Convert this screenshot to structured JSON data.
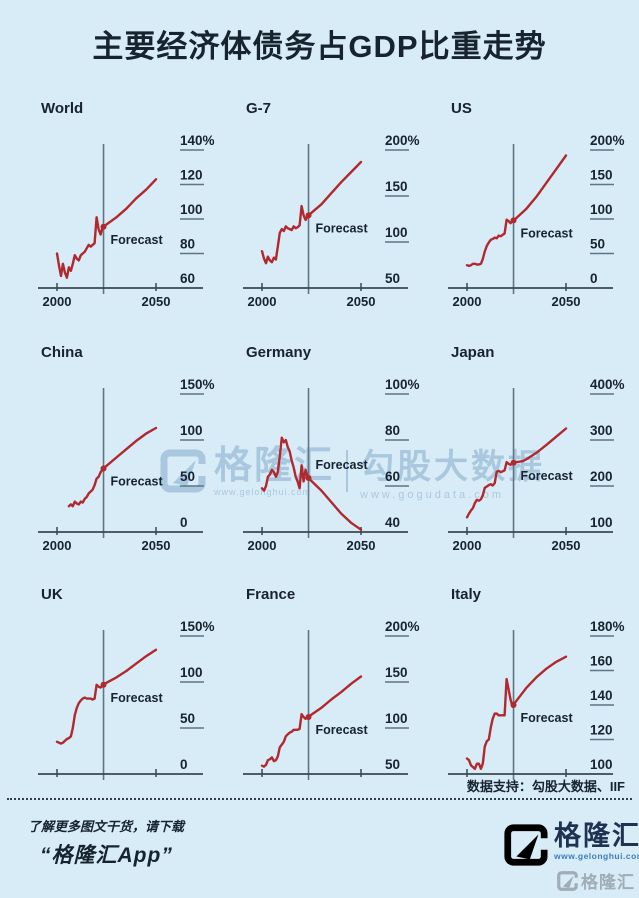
{
  "title": "主要经济体债务占GDP比重走势",
  "colors": {
    "background": "#d7ecf6",
    "text": "#17232f",
    "line_red": "#b1282e",
    "axis": "#3a4750",
    "guide": "#5f7584",
    "watermark_blue": "#85abcd",
    "logo_navy": "#1e3252",
    "logo_arrow_blue": "#4d92c6",
    "url_blue": "#3e7cc0"
  },
  "chart_data": [
    {
      "name": "world",
      "title": "World",
      "type": "line",
      "unit": "% of GDP",
      "x_range": [
        2000,
        2050
      ],
      "x_tick_labels": [
        "2000",
        "2050"
      ],
      "y_ticks": [
        140,
        120,
        100,
        80,
        60
      ],
      "y_tick_labels": [
        "140%",
        "120",
        "100",
        "80",
        "60"
      ],
      "forecast_start": 2023.5,
      "annotation": "Forecast",
      "forecast_label_above": false,
      "show_x_labels": true,
      "series": [
        [
          2000,
          80
        ],
        [
          2001,
          73
        ],
        [
          2002,
          67
        ],
        [
          2003,
          74
        ],
        [
          2004,
          69
        ],
        [
          2005,
          66
        ],
        [
          2006,
          72
        ],
        [
          2007,
          70
        ],
        [
          2008,
          74
        ],
        [
          2009,
          79
        ],
        [
          2010,
          77
        ],
        [
          2011,
          76
        ],
        [
          2012,
          79
        ],
        [
          2013,
          80
        ],
        [
          2014,
          81
        ],
        [
          2015,
          83
        ],
        [
          2016,
          85
        ],
        [
          2017,
          84
        ],
        [
          2018,
          85
        ],
        [
          2019,
          86
        ],
        [
          2020,
          101
        ],
        [
          2021,
          94
        ],
        [
          2022,
          91
        ],
        [
          2023,
          95
        ],
        [
          2024,
          96
        ],
        [
          2030,
          101
        ],
        [
          2035,
          106
        ],
        [
          2040,
          112
        ],
        [
          2045,
          117
        ],
        [
          2050,
          123
        ]
      ]
    },
    {
      "name": "g7",
      "title": "G-7",
      "type": "line",
      "unit": "% of GDP",
      "x_range": [
        2000,
        2050
      ],
      "x_tick_labels": [
        "2000",
        "2050"
      ],
      "y_ticks": [
        200,
        150,
        100,
        50
      ],
      "y_tick_labels": [
        "200%",
        "150",
        "100",
        "50"
      ],
      "forecast_start": 2023.5,
      "annotation": "Forecast",
      "forecast_label_above": false,
      "show_x_labels": true,
      "series": [
        [
          2000,
          90
        ],
        [
          2001,
          82
        ],
        [
          2002,
          77
        ],
        [
          2003,
          84
        ],
        [
          2004,
          80
        ],
        [
          2005,
          78
        ],
        [
          2006,
          83
        ],
        [
          2007,
          81
        ],
        [
          2008,
          95
        ],
        [
          2009,
          110
        ],
        [
          2010,
          114
        ],
        [
          2011,
          112
        ],
        [
          2012,
          117
        ],
        [
          2013,
          115
        ],
        [
          2014,
          114
        ],
        [
          2015,
          113
        ],
        [
          2016,
          117
        ],
        [
          2017,
          115
        ],
        [
          2018,
          116
        ],
        [
          2019,
          118
        ],
        [
          2020,
          139
        ],
        [
          2021,
          129
        ],
        [
          2022,
          124
        ],
        [
          2023,
          128
        ],
        [
          2024,
          130
        ],
        [
          2030,
          141
        ],
        [
          2035,
          153
        ],
        [
          2040,
          165
        ],
        [
          2045,
          176
        ],
        [
          2050,
          187
        ]
      ]
    },
    {
      "name": "us",
      "title": "US",
      "type": "line",
      "unit": "% of GDP",
      "x_range": [
        2000,
        2050
      ],
      "x_tick_labels": [
        "2000",
        "2050"
      ],
      "y_ticks": [
        200,
        150,
        100,
        50,
        0
      ],
      "y_tick_labels": [
        "200%",
        "150",
        "100",
        "50",
        "0"
      ],
      "forecast_start": 2023.5,
      "annotation": "Forecast",
      "forecast_label_above": false,
      "show_x_labels": true,
      "series": [
        [
          2000,
          33
        ],
        [
          2001,
          32
        ],
        [
          2002,
          33
        ],
        [
          2003,
          35
        ],
        [
          2004,
          35
        ],
        [
          2005,
          34
        ],
        [
          2006,
          34
        ],
        [
          2007,
          35
        ],
        [
          2008,
          42
        ],
        [
          2009,
          53
        ],
        [
          2010,
          61
        ],
        [
          2011,
          66
        ],
        [
          2012,
          70
        ],
        [
          2013,
          71
        ],
        [
          2014,
          73
        ],
        [
          2015,
          72
        ],
        [
          2016,
          76
        ],
        [
          2017,
          75
        ],
        [
          2018,
          77
        ],
        [
          2019,
          79
        ],
        [
          2020,
          99
        ],
        [
          2021,
          97
        ],
        [
          2022,
          94
        ],
        [
          2023,
          97
        ],
        [
          2024,
          99
        ],
        [
          2030,
          115
        ],
        [
          2035,
          132
        ],
        [
          2040,
          152
        ],
        [
          2045,
          172
        ],
        [
          2050,
          192
        ]
      ]
    },
    {
      "name": "china",
      "title": "China",
      "type": "line",
      "unit": "% of GDP",
      "x_range": [
        2000,
        2050
      ],
      "x_tick_labels": [
        "2000",
        "2050"
      ],
      "y_ticks": [
        150,
        100,
        50,
        0
      ],
      "y_tick_labels": [
        "150%",
        "100",
        "50",
        "0"
      ],
      "forecast_start": 2023.5,
      "annotation": "Forecast",
      "forecast_label_above": false,
      "show_x_labels": true,
      "series": [
        [
          2006,
          28
        ],
        [
          2007,
          30
        ],
        [
          2008,
          28
        ],
        [
          2009,
          33
        ],
        [
          2010,
          31
        ],
        [
          2011,
          30
        ],
        [
          2012,
          33
        ],
        [
          2013,
          32
        ],
        [
          2014,
          36
        ],
        [
          2015,
          38
        ],
        [
          2016,
          42
        ],
        [
          2017,
          44
        ],
        [
          2018,
          46
        ],
        [
          2019,
          51
        ],
        [
          2020,
          58
        ],
        [
          2021,
          60
        ],
        [
          2022,
          65
        ],
        [
          2023,
          68
        ],
        [
          2024,
          70
        ],
        [
          2030,
          81
        ],
        [
          2035,
          90
        ],
        [
          2040,
          99
        ],
        [
          2045,
          107
        ],
        [
          2050,
          113
        ]
      ]
    },
    {
      "name": "germany",
      "title": "Germany",
      "type": "line",
      "unit": "% of GDP",
      "x_range": [
        2000,
        2050
      ],
      "x_tick_labels": [
        "2000",
        "2050"
      ],
      "y_ticks": [
        100,
        80,
        60,
        40
      ],
      "y_tick_labels": [
        "100%",
        "80",
        "60",
        "40"
      ],
      "forecast_start": 2023.5,
      "annotation": "Forecast",
      "forecast_label_above": true,
      "show_x_labels": true,
      "series": [
        [
          2000,
          59
        ],
        [
          2001,
          58
        ],
        [
          2002,
          60
        ],
        [
          2003,
          64
        ],
        [
          2004,
          65
        ],
        [
          2005,
          67
        ],
        [
          2006,
          66
        ],
        [
          2007,
          64
        ],
        [
          2008,
          66
        ],
        [
          2009,
          73
        ],
        [
          2010,
          81
        ],
        [
          2011,
          79
        ],
        [
          2012,
          80
        ],
        [
          2013,
          77
        ],
        [
          2014,
          75
        ],
        [
          2015,
          71
        ],
        [
          2016,
          68
        ],
        [
          2017,
          64
        ],
        [
          2018,
          62
        ],
        [
          2019,
          59
        ],
        [
          2020,
          69
        ],
        [
          2021,
          62
        ],
        [
          2022,
          67
        ],
        [
          2023,
          64
        ],
        [
          2024,
          63
        ],
        [
          2030,
          58
        ],
        [
          2035,
          53
        ],
        [
          2040,
          48
        ],
        [
          2045,
          44
        ],
        [
          2050,
          41
        ]
      ]
    },
    {
      "name": "japan",
      "title": "Japan",
      "type": "line",
      "unit": "% of GDP",
      "x_range": [
        2000,
        2050
      ],
      "x_tick_labels": [
        "2000",
        "2050"
      ],
      "y_ticks": [
        400,
        300,
        200,
        100
      ],
      "y_tick_labels": [
        "400%",
        "300",
        "200",
        "100"
      ],
      "forecast_start": 2023.5,
      "annotation": "Forecast",
      "forecast_label_above": false,
      "show_x_labels": true,
      "series": [
        [
          2000,
          132
        ],
        [
          2001,
          140
        ],
        [
          2002,
          147
        ],
        [
          2003,
          152
        ],
        [
          2004,
          163
        ],
        [
          2005,
          170
        ],
        [
          2006,
          168
        ],
        [
          2007,
          171
        ],
        [
          2008,
          180
        ],
        [
          2009,
          196
        ],
        [
          2010,
          199
        ],
        [
          2011,
          202
        ],
        [
          2012,
          204
        ],
        [
          2013,
          201
        ],
        [
          2014,
          206
        ],
        [
          2015,
          231
        ],
        [
          2016,
          233
        ],
        [
          2017,
          230
        ],
        [
          2018,
          232
        ],
        [
          2019,
          234
        ],
        [
          2020,
          252
        ],
        [
          2021,
          248
        ],
        [
          2022,
          246
        ],
        [
          2023,
          250
        ],
        [
          2024,
          251
        ],
        [
          2028,
          254
        ],
        [
          2030,
          258
        ],
        [
          2035,
          272
        ],
        [
          2040,
          289
        ],
        [
          2045,
          307
        ],
        [
          2050,
          325
        ]
      ]
    },
    {
      "name": "uk",
      "title": "UK",
      "type": "line",
      "unit": "% of GDP",
      "x_range": [
        2000,
        2050
      ],
      "x_tick_labels": [],
      "y_ticks": [
        150,
        100,
        50,
        0
      ],
      "y_tick_labels": [
        "150%",
        "100",
        "50",
        "0"
      ],
      "forecast_start": 2023.5,
      "annotation": "Forecast",
      "forecast_label_above": false,
      "show_x_labels": false,
      "series": [
        [
          2000,
          35
        ],
        [
          2001,
          34
        ],
        [
          2002,
          33
        ],
        [
          2003,
          34
        ],
        [
          2004,
          36
        ],
        [
          2005,
          38
        ],
        [
          2006,
          39
        ],
        [
          2007,
          41
        ],
        [
          2008,
          50
        ],
        [
          2009,
          64
        ],
        [
          2010,
          72
        ],
        [
          2011,
          77
        ],
        [
          2012,
          80
        ],
        [
          2013,
          82
        ],
        [
          2014,
          83
        ],
        [
          2015,
          82
        ],
        [
          2016,
          82
        ],
        [
          2017,
          82
        ],
        [
          2018,
          81
        ],
        [
          2019,
          82
        ],
        [
          2020,
          97
        ],
        [
          2021,
          95
        ],
        [
          2022,
          94
        ],
        [
          2023,
          96
        ],
        [
          2024,
          98
        ],
        [
          2030,
          105
        ],
        [
          2035,
          112
        ],
        [
          2040,
          120
        ],
        [
          2045,
          128
        ],
        [
          2050,
          135
        ]
      ]
    },
    {
      "name": "france",
      "title": "France",
      "type": "line",
      "unit": "% of GDP",
      "x_range": [
        2000,
        2050
      ],
      "x_tick_labels": [],
      "y_ticks": [
        200,
        150,
        100,
        50
      ],
      "y_tick_labels": [
        "200%",
        "150",
        "100",
        "50"
      ],
      "forecast_start": 2023.5,
      "annotation": "Forecast",
      "forecast_label_above": false,
      "show_x_labels": false,
      "series": [
        [
          2000,
          59
        ],
        [
          2001,
          58
        ],
        [
          2002,
          60
        ],
        [
          2003,
          65
        ],
        [
          2004,
          66
        ],
        [
          2005,
          68
        ],
        [
          2006,
          64
        ],
        [
          2007,
          65
        ],
        [
          2008,
          69
        ],
        [
          2009,
          79
        ],
        [
          2010,
          82
        ],
        [
          2011,
          85
        ],
        [
          2012,
          91
        ],
        [
          2013,
          93
        ],
        [
          2014,
          95
        ],
        [
          2015,
          96
        ],
        [
          2016,
          98
        ],
        [
          2017,
          98
        ],
        [
          2018,
          98
        ],
        [
          2019,
          99
        ],
        [
          2020,
          115
        ],
        [
          2021,
          112
        ],
        [
          2022,
          110
        ],
        [
          2023,
          111
        ],
        [
          2024,
          113
        ],
        [
          2030,
          122
        ],
        [
          2035,
          131
        ],
        [
          2040,
          139
        ],
        [
          2045,
          148
        ],
        [
          2050,
          156
        ]
      ]
    },
    {
      "name": "italy",
      "title": "Italy",
      "type": "line",
      "unit": "% of GDP",
      "x_range": [
        2000,
        2050
      ],
      "x_tick_labels": [],
      "y_ticks": [
        180,
        160,
        140,
        120,
        100
      ],
      "y_tick_labels": [
        "180%",
        "160",
        "140",
        "120",
        "100"
      ],
      "forecast_start": 2023.5,
      "annotation": "Forecast",
      "forecast_label_above": false,
      "show_x_labels": false,
      "series": [
        [
          2000,
          109
        ],
        [
          2001,
          108
        ],
        [
          2002,
          105
        ],
        [
          2003,
          104
        ],
        [
          2004,
          103
        ],
        [
          2005,
          106
        ],
        [
          2006,
          106
        ],
        [
          2007,
          103
        ],
        [
          2008,
          106
        ],
        [
          2009,
          116
        ],
        [
          2010,
          119
        ],
        [
          2011,
          120
        ],
        [
          2012,
          127
        ],
        [
          2013,
          132
        ],
        [
          2014,
          135
        ],
        [
          2015,
          135
        ],
        [
          2016,
          134
        ],
        [
          2017,
          134
        ],
        [
          2018,
          134
        ],
        [
          2019,
          134
        ],
        [
          2020,
          155
        ],
        [
          2021,
          149
        ],
        [
          2022,
          143
        ],
        [
          2023,
          139
        ],
        [
          2024,
          141
        ],
        [
          2030,
          150
        ],
        [
          2035,
          156
        ],
        [
          2040,
          161
        ],
        [
          2045,
          165
        ],
        [
          2050,
          168
        ]
      ]
    }
  ],
  "watermark": {
    "brand": "格隆汇",
    "brand_url": "www.gelonghui.com",
    "partner": "勾股大数据",
    "partner_url": "www.gogudata.com"
  },
  "footer": {
    "source_note": "数据支持：勾股大数据、IIF",
    "promo_line": "了解更多图文干货，请下载",
    "promo_app": "“格隆汇App”",
    "logo_text": "格隆汇",
    "logo_url": "www.gelonghui.com",
    "corner_brand": "格隆汇"
  }
}
